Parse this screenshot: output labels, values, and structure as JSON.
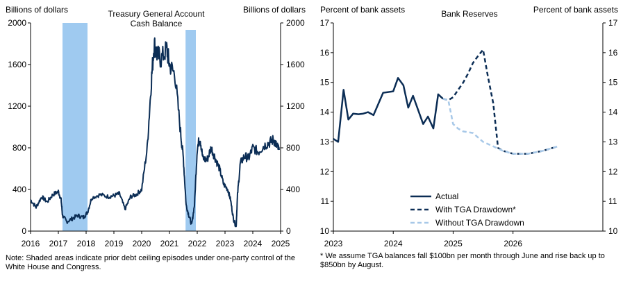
{
  "chart_data": [
    {
      "type": "line",
      "title_lines": [
        "Treasury General Account",
        "Cash Balance"
      ],
      "ylabel_left": "Billions of dollars",
      "ylabel_right": "Billions of dollars",
      "ylim": [
        0,
        2000
      ],
      "yticks": [
        0,
        400,
        800,
        1200,
        1600,
        2000
      ],
      "yticks_right": [
        0,
        400,
        800,
        1200,
        1600,
        2000
      ],
      "xlim": [
        2016,
        2025
      ],
      "xticks": [
        2016,
        2017,
        2018,
        2019,
        2020,
        2021,
        2022,
        2023,
        2024,
        2025
      ],
      "grid": false,
      "shaded_periods": [
        [
          2017.15,
          2018.05
        ],
        [
          2021.58,
          2021.95
        ]
      ],
      "series_color": "#0b2d55",
      "shade_color": "#9fcaf0",
      "x": [
        2016.0,
        2016.2,
        2016.4,
        2016.6,
        2016.8,
        2017.0,
        2017.1,
        2017.15,
        2017.3,
        2017.5,
        2017.7,
        2017.9,
        2018.05,
        2018.2,
        2018.5,
        2018.8,
        2019.0,
        2019.2,
        2019.4,
        2019.6,
        2019.8,
        2020.0,
        2020.2,
        2020.35,
        2020.45,
        2020.55,
        2020.7,
        2020.9,
        2021.0,
        2021.2,
        2021.4,
        2021.5,
        2021.6,
        2021.7,
        2021.8,
        2021.9,
        2022.0,
        2022.1,
        2022.2,
        2022.35,
        2022.5,
        2022.65,
        2022.8,
        2022.95,
        2023.1,
        2023.2,
        2023.3,
        2023.4,
        2023.45,
        2023.55,
        2023.7,
        2023.85,
        2024.0,
        2024.2,
        2024.4,
        2024.6,
        2024.75,
        2024.85,
        2024.95
      ],
      "y": [
        300,
        230,
        330,
        280,
        350,
        380,
        300,
        150,
        90,
        120,
        150,
        130,
        180,
        320,
        350,
        330,
        340,
        360,
        210,
        330,
        350,
        400,
        800,
        1450,
        1800,
        1700,
        1650,
        1750,
        1600,
        1500,
        950,
        700,
        250,
        150,
        60,
        250,
        800,
        900,
        700,
        680,
        800,
        700,
        600,
        450,
        400,
        300,
        120,
        40,
        350,
        650,
        720,
        700,
        800,
        760,
        820,
        850,
        880,
        820,
        780
      ]
    },
    {
      "type": "line",
      "title": "Bank Reserves",
      "ylabel_left": "Percent of bank assets",
      "ylabel_right": "Percent of bank assets",
      "ylim": [
        10,
        17
      ],
      "yticks": [
        10,
        11,
        12,
        13,
        14,
        15,
        16,
        17
      ],
      "yticks_right": [
        10,
        11,
        12,
        13,
        14,
        15,
        16,
        17
      ],
      "xlim": [
        2023,
        2027.5
      ],
      "xticks": [
        2023,
        2024,
        2025,
        2026
      ],
      "grid": false,
      "series": [
        {
          "name": "Actual",
          "color": "#0b2d55",
          "dash": "solid",
          "x": [
            2023.0,
            2023.08,
            2023.17,
            2023.25,
            2023.33,
            2023.42,
            2023.5,
            2023.58,
            2023.67,
            2023.83,
            2024.0,
            2024.08,
            2024.17,
            2024.25,
            2024.33,
            2024.5,
            2024.58,
            2024.67,
            2024.75,
            2024.83
          ],
          "y": [
            13.1,
            13.0,
            14.75,
            13.75,
            13.95,
            13.93,
            13.95,
            14.0,
            13.9,
            14.65,
            14.7,
            15.15,
            14.9,
            14.15,
            14.55,
            13.6,
            13.85,
            13.45,
            14.6,
            14.45
          ]
        },
        {
          "name": "With TGA Drawdown*",
          "color": "#0b2d55",
          "dash": "dashed",
          "x": [
            2024.83,
            2024.92,
            2025.0,
            2025.17,
            2025.25,
            2025.33,
            2025.42,
            2025.5,
            2025.58,
            2025.67,
            2025.75,
            2025.83,
            2025.92,
            2026.0,
            2026.25,
            2026.5,
            2026.75
          ],
          "y": [
            14.45,
            14.4,
            14.5,
            15.0,
            15.3,
            15.65,
            15.9,
            16.1,
            15.2,
            14.3,
            12.8,
            12.7,
            12.65,
            12.6,
            12.6,
            12.7,
            12.85
          ]
        },
        {
          "name": "Without TGA Drawdown",
          "color": "#a7c8e8",
          "dash": "dashed",
          "x": [
            2024.83,
            2024.92,
            2025.0,
            2025.08,
            2025.17,
            2025.33,
            2025.5,
            2025.67,
            2025.83,
            2026.0,
            2026.25,
            2026.5,
            2026.75
          ],
          "y": [
            14.45,
            14.4,
            13.6,
            13.45,
            13.35,
            13.3,
            13.0,
            12.85,
            12.7,
            12.6,
            12.6,
            12.7,
            12.85
          ]
        }
      ],
      "legend_position": "bottom-center"
    }
  ],
  "notes": {
    "left": "Note: Shaded areas indicate prior debt ceiling episodes under one-party control of the White House and Congress.",
    "right": "* We assume TGA balances fall $100bn per month through June and rise back up to $850bn by August."
  }
}
